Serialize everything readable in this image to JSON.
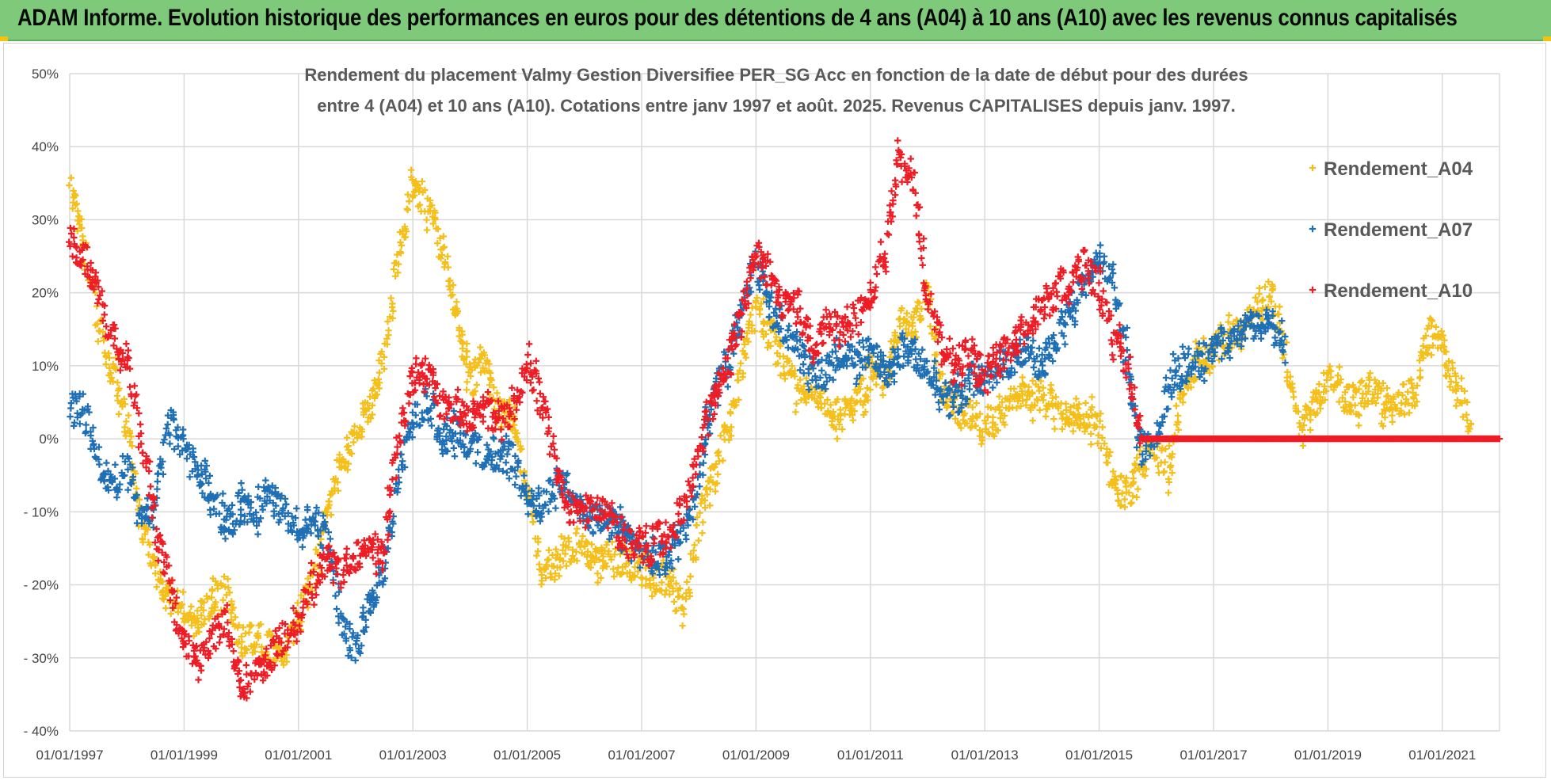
{
  "banner": {
    "title": "ADAM Informe. Evolution historique des performances en euros pour des détentions de 4 ans (A04) à 10 ans (A10) avec les revenus connus capitalisés",
    "color": "#7ec97a"
  },
  "chart_data": {
    "type": "scatter",
    "title_line1": "Rendement du placement Valmy Gestion Diversifiee PER_SG Acc en fonction de la date de début pour des durées",
    "title_line2": "entre 4 (A04) et 10 ans (A10).  Cotations entre janv 1997 et août. 2025. Revenus CAPITALISES depuis janv. 1997.",
    "xlabel": "",
    "ylabel": "",
    "x_range": [
      "1997-01-01",
      "2022-01-01"
    ],
    "ylim": [
      -40,
      50
    ],
    "y_ticks": [
      "50%",
      "40%",
      "30%",
      "20%",
      "10%",
      "0%",
      "- 10%",
      "- 20%",
      "- 30%",
      "- 40%"
    ],
    "x_ticks": [
      "01/01/1997",
      "01/01/1999",
      "01/01/2001",
      "01/01/2003",
      "01/01/2005",
      "01/01/2007",
      "01/01/2009",
      "01/01/2011",
      "01/01/2013",
      "01/01/2015",
      "01/01/2017",
      "01/01/2019",
      "01/01/2021"
    ],
    "grid": "horizontal",
    "legend_position": "top-right",
    "marker": "+",
    "series": [
      {
        "name": "Rendement_A04",
        "color": "#f5bf1b",
        "x": [
          1997.0,
          1997.25,
          1997.5,
          1997.75,
          1998.0,
          1998.25,
          1998.5,
          1998.75,
          1999.0,
          1999.25,
          1999.5,
          1999.75,
          2000.0,
          2000.25,
          2000.5,
          2000.75,
          2001.0,
          2001.25,
          2001.5,
          2001.75,
          2002.0,
          2002.25,
          2002.5,
          2002.75,
          2003.0,
          2003.25,
          2003.5,
          2003.75,
          2004.0,
          2004.25,
          2004.5,
          2004.75,
          2005.0,
          2005.25,
          2005.5,
          2005.75,
          2006.0,
          2006.25,
          2006.5,
          2006.75,
          2007.0,
          2007.25,
          2007.5,
          2007.75,
          2008.0,
          2008.25,
          2008.5,
          2008.75,
          2009.0,
          2009.25,
          2009.5,
          2009.75,
          2010.0,
          2010.25,
          2010.5,
          2010.75,
          2011.0,
          2011.25,
          2011.5,
          2011.75,
          2012.0,
          2012.25,
          2012.5,
          2012.75,
          2013.0,
          2013.25,
          2013.5,
          2013.75,
          2014.0,
          2014.25,
          2014.5,
          2014.75,
          2015.0,
          2015.25,
          2015.5,
          2015.75,
          2016.0,
          2016.25,
          2016.5,
          2016.75,
          2017.0,
          2017.25,
          2017.5,
          2017.75,
          2018.0,
          2018.25,
          2018.5,
          2018.75,
          2019.0,
          2019.25,
          2019.5,
          2019.75,
          2020.0,
          2020.25,
          2020.5,
          2020.75,
          2021.0,
          2021.25,
          2021.5
        ],
        "y": [
          34,
          27,
          16,
          9,
          2,
          -12,
          -18,
          -22,
          -23,
          -25,
          -22,
          -22,
          -28,
          -27,
          -28,
          -29,
          -24,
          -20,
          -10,
          -3,
          0,
          4,
          11,
          26,
          35,
          32,
          26,
          18,
          8,
          10,
          4,
          2,
          -6,
          -20,
          -16,
          -15,
          -15,
          -17,
          -16,
          -17,
          -17,
          -19,
          -20,
          -24,
          -12,
          -5,
          1,
          10,
          18,
          14,
          10,
          6,
          8,
          4,
          3,
          5,
          9,
          8,
          16,
          15,
          20,
          7,
          4,
          3,
          2,
          3,
          5,
          6,
          6,
          4,
          4,
          3,
          2,
          -6,
          -8,
          -3,
          -2,
          -4,
          8,
          11,
          12,
          14,
          15,
          18,
          20,
          12,
          1,
          4,
          8,
          6,
          5,
          7,
          5,
          5,
          6,
          15,
          12,
          7,
          2
        ]
      },
      {
        "name": "Rendement_A07",
        "color": "#1f6fb5",
        "x": [
          1997.0,
          1997.25,
          1997.5,
          1997.75,
          1998.0,
          1998.25,
          1998.5,
          1998.75,
          1999.0,
          1999.25,
          1999.5,
          1999.75,
          2000.0,
          2000.25,
          2000.5,
          2000.75,
          2001.0,
          2001.25,
          2001.5,
          2001.75,
          2002.0,
          2002.25,
          2002.5,
          2002.75,
          2003.0,
          2003.25,
          2003.5,
          2003.75,
          2004.0,
          2004.25,
          2004.5,
          2004.75,
          2005.0,
          2005.25,
          2005.5,
          2005.75,
          2006.0,
          2006.25,
          2006.5,
          2006.75,
          2007.0,
          2007.25,
          2007.5,
          2007.75,
          2008.0,
          2008.25,
          2008.5,
          2008.75,
          2009.0,
          2009.25,
          2009.5,
          2009.75,
          2010.0,
          2010.25,
          2010.5,
          2010.75,
          2011.0,
          2011.25,
          2011.5,
          2011.75,
          2012.0,
          2012.25,
          2012.5,
          2012.75,
          2013.0,
          2013.25,
          2013.5,
          2013.75,
          2014.0,
          2014.25,
          2014.5,
          2014.75,
          2015.0,
          2015.25,
          2015.5,
          2015.75,
          2016.0,
          2016.25,
          2016.5,
          2016.75,
          2017.0,
          2017.25,
          2017.5,
          2017.75,
          2018.0,
          2018.25
        ],
        "y": [
          4,
          4,
          -3,
          -6,
          -4,
          -12,
          -8,
          2,
          -2,
          -5,
          -8,
          -12,
          -9,
          -10,
          -8,
          -10,
          -12,
          -11,
          -14,
          -25,
          -29,
          -22,
          -18,
          -5,
          2,
          6,
          0,
          1,
          -1,
          -2,
          -2,
          -3,
          -8,
          -9,
          -6,
          -7,
          -10,
          -11,
          -12,
          -14,
          -16,
          -17,
          -16,
          -13,
          -5,
          5,
          10,
          18,
          24,
          18,
          15,
          12,
          8,
          9,
          12,
          10,
          13,
          9,
          12,
          11,
          10,
          6,
          5,
          8,
          8,
          10,
          11,
          12,
          10,
          14,
          18,
          20,
          25,
          22,
          10,
          -2,
          0,
          8,
          10,
          10,
          13,
          13,
          15,
          16,
          16,
          14
        ]
      },
      {
        "name": "Rendement_A10",
        "color": "#ee1c25",
        "x": [
          1997.0,
          1997.25,
          1997.5,
          1997.75,
          1998.0,
          1998.25,
          1998.5,
          1998.75,
          1999.0,
          1999.25,
          1999.5,
          1999.75,
          2000.0,
          2000.25,
          2000.5,
          2000.75,
          2001.0,
          2001.25,
          2001.5,
          2001.75,
          2002.0,
          2002.25,
          2002.5,
          2002.75,
          2003.0,
          2003.25,
          2003.5,
          2003.75,
          2004.0,
          2004.25,
          2004.5,
          2004.75,
          2005.0,
          2005.25,
          2005.5,
          2005.75,
          2006.0,
          2006.25,
          2006.5,
          2006.75,
          2007.0,
          2007.25,
          2007.5,
          2007.75,
          2008.0,
          2008.25,
          2008.5,
          2008.75,
          2009.0,
          2009.25,
          2009.5,
          2009.75,
          2010.0,
          2010.25,
          2010.5,
          2010.75,
          2011.0,
          2011.25,
          2011.5,
          2011.75,
          2012.0,
          2012.25,
          2012.5,
          2012.75,
          2013.0,
          2013.25,
          2013.5,
          2013.75,
          2014.0,
          2014.25,
          2014.5,
          2014.75,
          2015.0,
          2015.25,
          2015.5,
          2015.75,
          2016.0,
          2016.25,
          2016.5,
          2016.75,
          2017.0,
          2017.25,
          2017.5,
          2017.75,
          2018.0,
          2018.25,
          2018.5,
          2018.75,
          2019.0,
          2019.25,
          2019.5,
          2019.75,
          2020.0,
          2020.25,
          2020.5,
          2020.75,
          2021.0,
          2021.25,
          2021.5,
          2021.75,
          2022.0
        ],
        "y": [
          27,
          25,
          20,
          14,
          11,
          0,
          -12,
          -20,
          -28,
          -31,
          -27,
          -24,
          -34,
          -32,
          -30,
          -27,
          -24,
          -20,
          -16,
          -19,
          -16,
          -15,
          -15,
          0,
          8,
          10,
          4,
          5,
          3,
          3,
          3,
          4,
          10,
          5,
          -3,
          -10,
          -9,
          -10,
          -11,
          -14,
          -15,
          -14,
          -13,
          -9,
          -2,
          5,
          10,
          17,
          25,
          22,
          18,
          18,
          12,
          16,
          15,
          17,
          20,
          26,
          38,
          36,
          20,
          13,
          10,
          12,
          8,
          11,
          13,
          16,
          18,
          20,
          22,
          24,
          21,
          13,
          10,
          0,
          0,
          0,
          0,
          0,
          0,
          0,
          0,
          0,
          0,
          0,
          0,
          0,
          0,
          0,
          0,
          0,
          0,
          0,
          0,
          0,
          0,
          0,
          0,
          0,
          0
        ]
      }
    ]
  }
}
